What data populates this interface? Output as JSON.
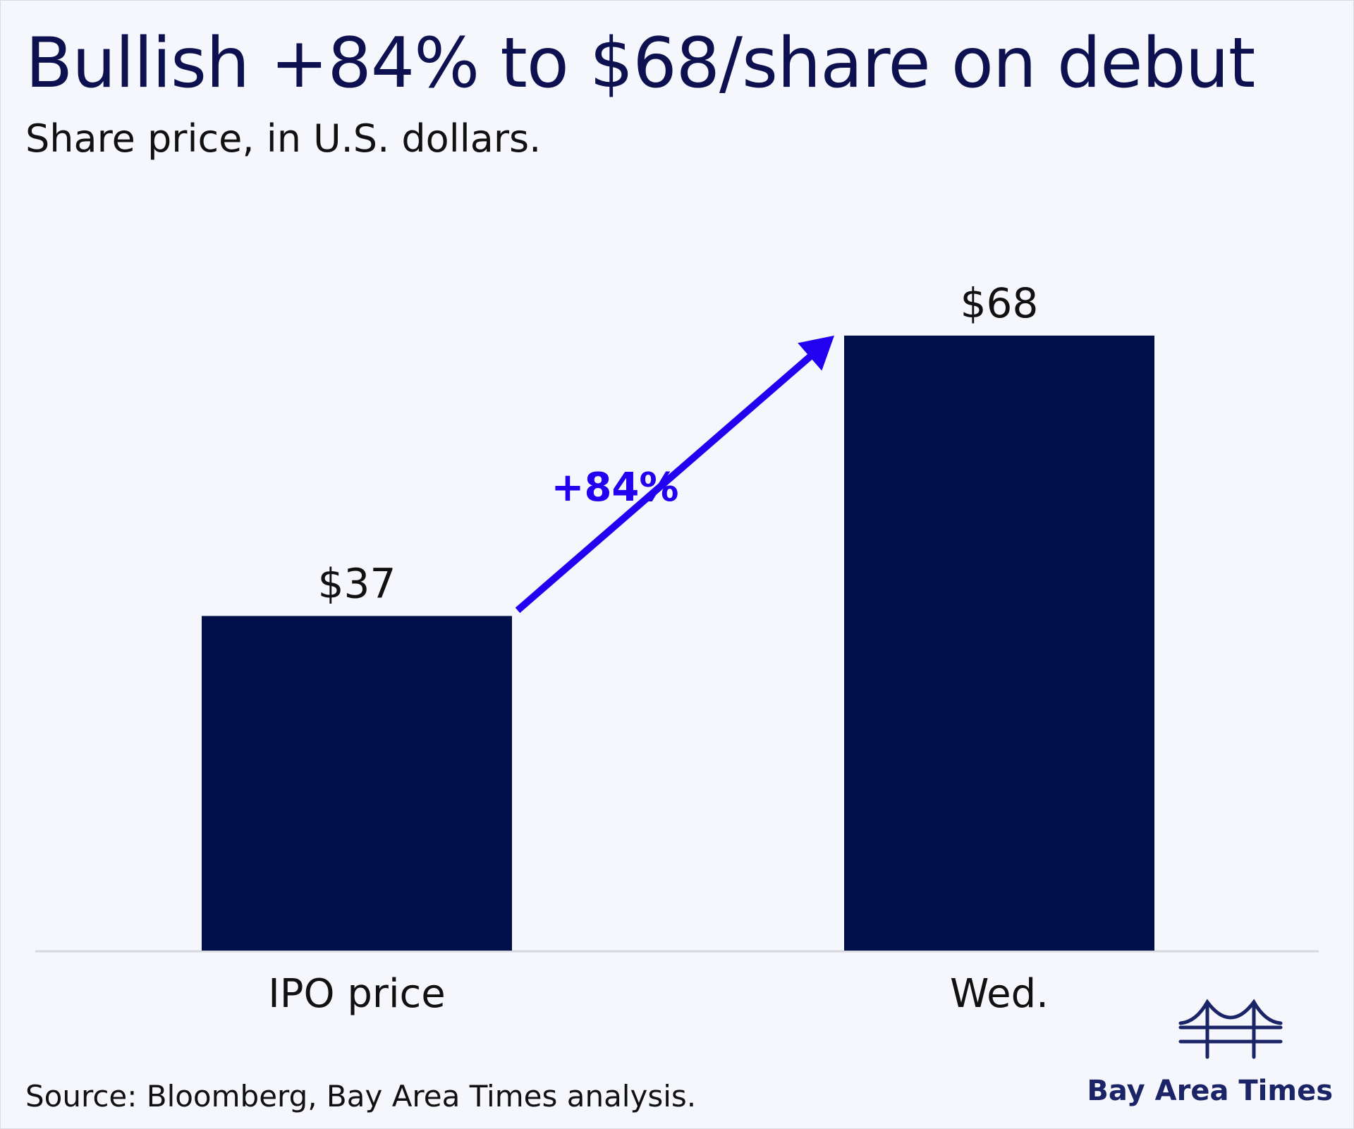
{
  "title": "Bullish +84% to $68/share on debut",
  "subtitle": "Share price, in U.S. dollars.",
  "source": "Source: Bloomberg, Bay Area Times analysis.",
  "brand": "Bay Area Times",
  "colors": {
    "bar": "#000f48",
    "arrow": "#2200f0",
    "title": "#0d1150",
    "axis": "#d7d8df",
    "background": "#f6f7fc"
  },
  "chart_data": {
    "type": "bar",
    "categories": [
      "IPO price",
      "Wed."
    ],
    "values": [
      37,
      68
    ],
    "value_labels": [
      "$37",
      "$68"
    ],
    "ylim": [
      0,
      80
    ],
    "grid": false,
    "annotation": {
      "text": "+84%",
      "from_category": "IPO price",
      "to_category": "Wed."
    }
  }
}
